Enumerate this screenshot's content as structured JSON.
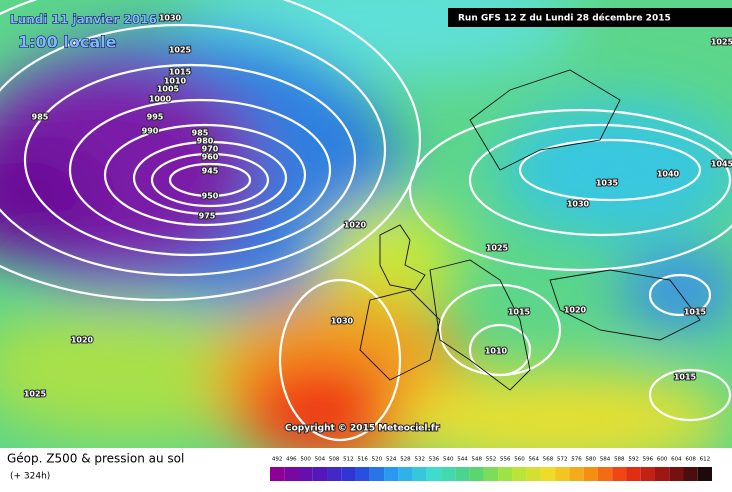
{
  "header": {
    "valid_date": "Lundi 11 janvier 2016",
    "time": "1:00 locale",
    "run": "Run GFS 12 Z du Lundi 28 décembre 2015"
  },
  "isobar_labels": [
    "1030",
    "1025",
    "1015",
    "1010",
    "1005",
    "1000",
    "995",
    "990",
    "985",
    "985",
    "980",
    "970",
    "960",
    "945",
    "950",
    "975",
    "1020",
    "1025",
    "1035",
    "1040",
    "1030",
    "1015",
    "1020",
    "1015",
    "1010",
    "1030",
    "1020",
    "1025",
    "1015",
    "1025",
    "1045"
  ],
  "copyright": "Copyright © 2015 Meteociel.fr",
  "footer": {
    "title": "Géop. Z500 & pression au sol",
    "forecast": "(+ 324h)",
    "scale": [
      492,
      496,
      500,
      504,
      508,
      512,
      516,
      520,
      524,
      528,
      532,
      536,
      540,
      544,
      548,
      552,
      556,
      560,
      564,
      568,
      572,
      576,
      580,
      584,
      588,
      592,
      596,
      600,
      604,
      608,
      612
    ]
  }
}
